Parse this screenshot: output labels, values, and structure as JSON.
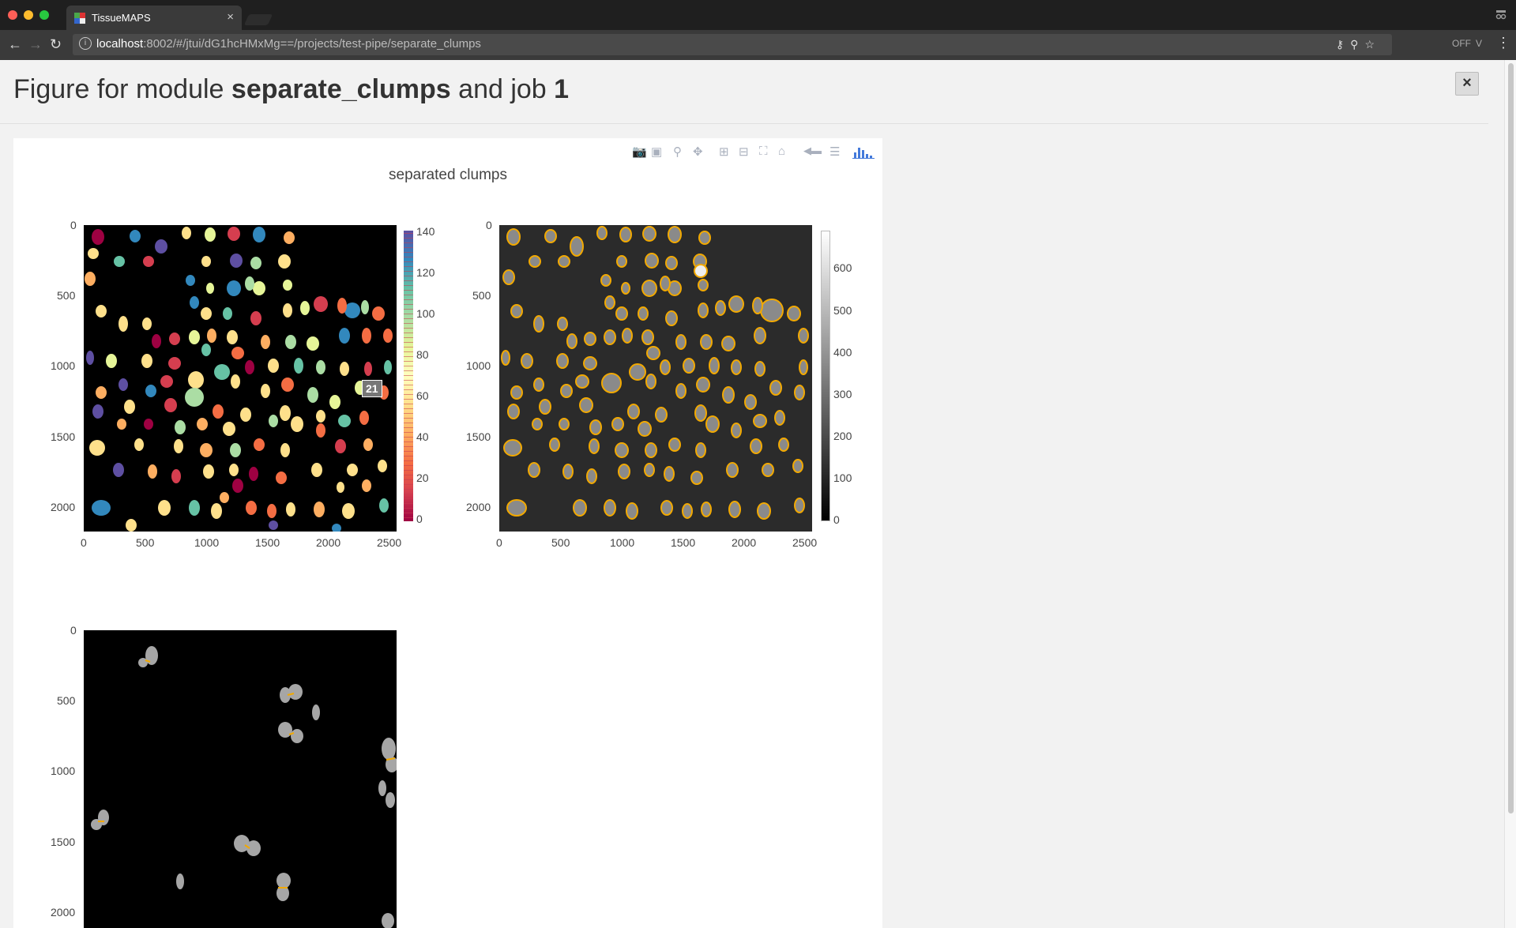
{
  "browser": {
    "tab_title": "TissueMAPS",
    "tab_close": "×",
    "url_host": "localhost",
    "url_rest": ":8002/#/jtui/dG1hcHMxMg==/projects/test-pipe/separate_clumps",
    "ext1": "OFF",
    "ext2": "V"
  },
  "header": {
    "title_prefix": "Figure for module ",
    "module_name": "separate_clumps",
    "title_mid": " and job ",
    "job_number": "1",
    "close_label": "×"
  },
  "figure": {
    "title": "separated clumps",
    "hover_value": "21",
    "x_ticks": [
      "0",
      "500",
      "1000",
      "1500",
      "2000",
      "2500"
    ],
    "y_ticks": [
      "0",
      "500",
      "1000",
      "1500",
      "2000"
    ],
    "colorbar1_ticks": [
      "140",
      "120",
      "100",
      "80",
      "60",
      "40",
      "20",
      "0"
    ],
    "colorbar2_ticks": [
      "600",
      "500",
      "400",
      "300",
      "200",
      "100",
      "0"
    ]
  },
  "colors": {
    "outline": "#f2a900",
    "modebar_active": "#447adb"
  }
}
